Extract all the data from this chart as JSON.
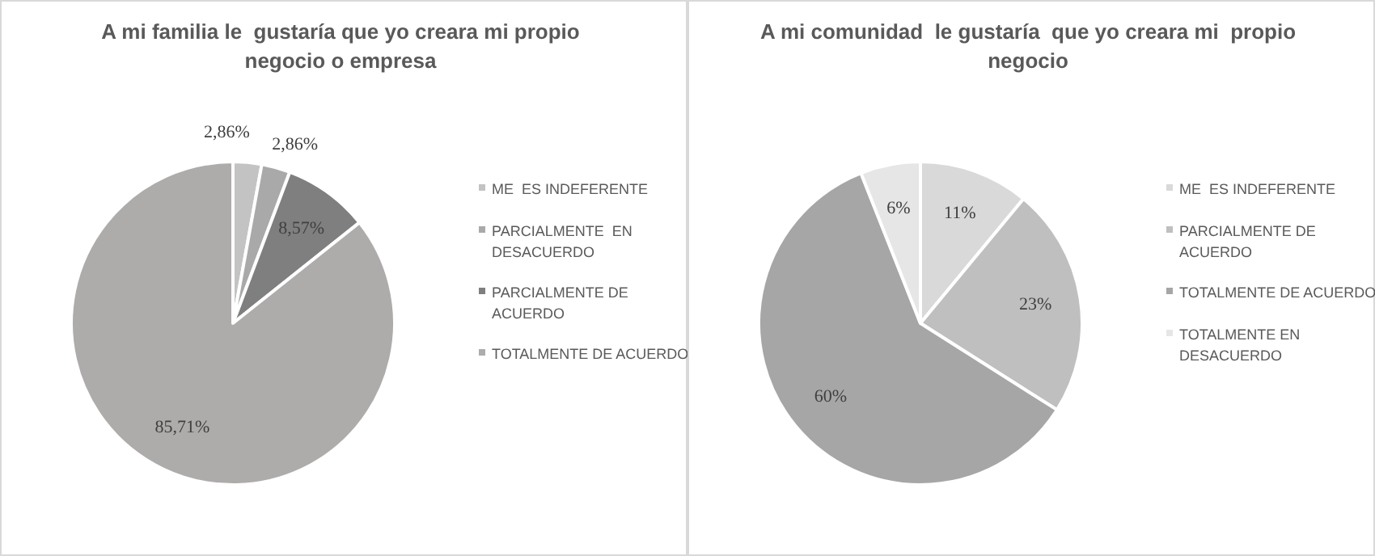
{
  "chart_data": [
    {
      "type": "pie",
      "title": "A mi familia le  gustaría que yo creara mi propio negocio o empresa",
      "categories": [
        "ME  ES INDEFERENTE",
        "PARCIALMENTE  EN DESACUERDO",
        "PARCIALMENTE DE ACUERDO",
        "TOTALMENTE DE ACUERDO"
      ],
      "values": [
        2.86,
        2.86,
        8.57,
        85.71
      ],
      "value_labels": [
        "2,86%",
        "2,86%",
        "8,57%",
        "85,71%"
      ],
      "colors": [
        "#c4c3c3",
        "#a9a9a9",
        "#7f7f7f",
        "#aeabab"
      ],
      "legend": "right"
    },
    {
      "type": "pie",
      "title": "A mi comunidad  le gustaría  que yo creara mi  propio negocio",
      "categories": [
        "ME  ES INDEFERENTE",
        "PARCIALMENTE DE ACUERDO",
        "TOTALMENTE DE ACUERDO",
        "TOTALMENTE EN DESACUERDO"
      ],
      "values": [
        11,
        23,
        60,
        6
      ],
      "value_labels": [
        "11%",
        "23%",
        "60%",
        "6%"
      ],
      "colors": [
        "#d9d9d9",
        "#bfbfbf",
        "#a6a6a6",
        "#e7e6e6"
      ],
      "legend": "right"
    }
  ]
}
